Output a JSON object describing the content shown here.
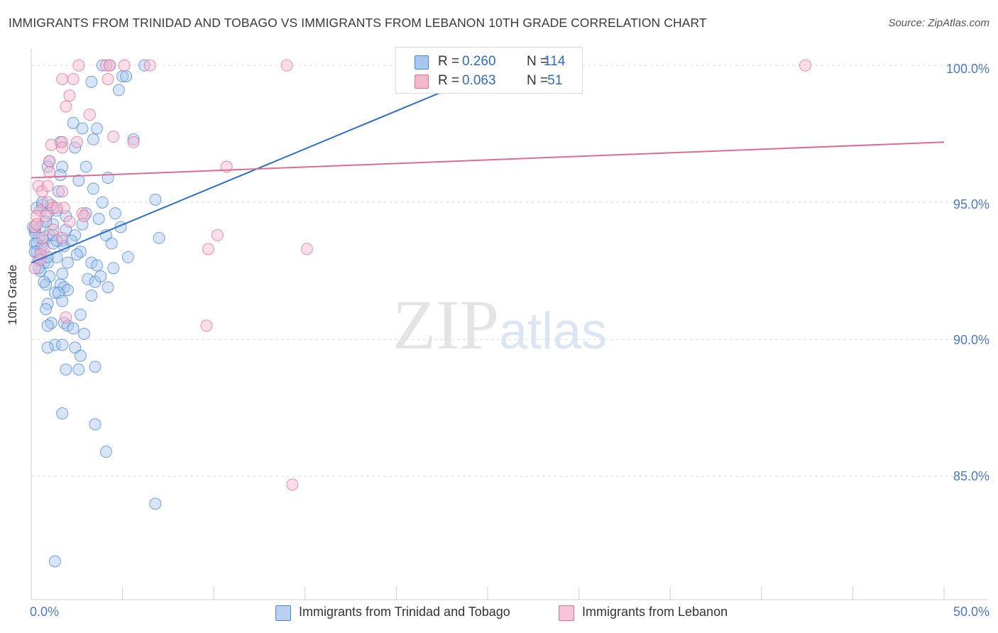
{
  "chart_data": {
    "type": "scatter",
    "title": "IMMIGRANTS FROM TRINIDAD AND TOBAGO VS IMMIGRANTS FROM LEBANON 10TH GRADE CORRELATION CHART",
    "source": "Source: ZipAtlas.com",
    "xlabel": "",
    "ylabel": "10th Grade",
    "xlim": [
      0,
      50
    ],
    "ylim": [
      80.5,
      100.6
    ],
    "x_tick_labels": [
      "0.0%",
      "50.0%"
    ],
    "y_tick_labels": [
      "100.0%",
      "95.0%",
      "90.0%",
      "85.0%"
    ],
    "y_tick_values": [
      100,
      95,
      90,
      85
    ],
    "watermark": {
      "zip": "ZIP",
      "atlas": "atlas"
    },
    "legend_stats": [
      {
        "r_label": "R =",
        "r": "0.260",
        "n_label": "N =",
        "n": "114"
      },
      {
        "r_label": "R =",
        "r": "0.063",
        "n_label": "N =",
        "n": " 51"
      }
    ],
    "series": [
      {
        "name": "Immigrants from Trinidad and Tobago",
        "color": "#4a86d8",
        "fill": "#a9c6ef",
        "trend": {
          "x0": 0,
          "y0": 92.8,
          "x1": 26,
          "y1": 100.0
        },
        "points": [
          [
            3.9,
            100
          ],
          [
            4.3,
            100
          ],
          [
            6.2,
            100
          ],
          [
            5.0,
            99.6
          ],
          [
            5.2,
            99.6
          ],
          [
            3.3,
            99.4
          ],
          [
            4.8,
            99.1
          ],
          [
            2.3,
            97.9
          ],
          [
            2.8,
            97.7
          ],
          [
            3.6,
            97.7
          ],
          [
            1.6,
            97.2
          ],
          [
            3.4,
            97.3
          ],
          [
            2.4,
            97.0
          ],
          [
            5.6,
            97.3
          ],
          [
            1.0,
            96.5
          ],
          [
            1.7,
            96.3
          ],
          [
            0.9,
            96.3
          ],
          [
            1.6,
            96.0
          ],
          [
            3.0,
            96.3
          ],
          [
            2.6,
            95.8
          ],
          [
            4.2,
            95.9
          ],
          [
            3.4,
            95.5
          ],
          [
            1.5,
            95.4
          ],
          [
            3.9,
            95.0
          ],
          [
            6.8,
            95.1
          ],
          [
            0.6,
            94.9
          ],
          [
            0.3,
            94.8
          ],
          [
            1.4,
            94.7
          ],
          [
            0.9,
            94.6
          ],
          [
            1.9,
            94.5
          ],
          [
            4.6,
            94.6
          ],
          [
            3.7,
            94.4
          ],
          [
            0.2,
            94.0
          ],
          [
            0.5,
            94.1
          ],
          [
            1.2,
            94.2
          ],
          [
            2.8,
            94.2
          ],
          [
            1.9,
            94.0
          ],
          [
            0.4,
            93.7
          ],
          [
            1.0,
            93.8
          ],
          [
            1.7,
            93.6
          ],
          [
            2.4,
            93.8
          ],
          [
            4.1,
            93.8
          ],
          [
            0.2,
            93.5
          ],
          [
            0.7,
            93.6
          ],
          [
            1.2,
            93.5
          ],
          [
            1.8,
            93.4
          ],
          [
            4.4,
            93.5
          ],
          [
            7.0,
            93.7
          ],
          [
            0.3,
            93.2
          ],
          [
            0.5,
            93.3
          ],
          [
            2.7,
            93.2
          ],
          [
            0.4,
            92.9
          ],
          [
            0.7,
            92.8
          ],
          [
            3.3,
            92.8
          ],
          [
            3.6,
            92.7
          ],
          [
            4.5,
            92.6
          ],
          [
            0.5,
            92.5
          ],
          [
            1.7,
            92.4
          ],
          [
            1.0,
            92.3
          ],
          [
            3.1,
            92.2
          ],
          [
            0.8,
            92.0
          ],
          [
            1.6,
            92.0
          ],
          [
            1.8,
            91.9
          ],
          [
            3.5,
            92.1
          ],
          [
            2.0,
            91.8
          ],
          [
            4.2,
            91.9
          ],
          [
            1.3,
            91.7
          ],
          [
            1.5,
            91.7
          ],
          [
            3.3,
            91.6
          ],
          [
            1.7,
            91.4
          ],
          [
            0.9,
            91.3
          ],
          [
            0.8,
            91.1
          ],
          [
            2.7,
            90.9
          ],
          [
            1.1,
            90.6
          ],
          [
            1.8,
            90.6
          ],
          [
            2.0,
            90.5
          ],
          [
            0.9,
            90.5
          ],
          [
            2.3,
            90.4
          ],
          [
            2.9,
            90.2
          ],
          [
            1.3,
            89.8
          ],
          [
            1.7,
            89.8
          ],
          [
            0.9,
            89.7
          ],
          [
            2.4,
            89.7
          ],
          [
            2.7,
            89.4
          ],
          [
            3.5,
            89.0
          ],
          [
            1.9,
            88.9
          ],
          [
            2.6,
            88.9
          ],
          [
            1.7,
            87.3
          ],
          [
            3.5,
            86.9
          ],
          [
            4.1,
            85.9
          ],
          [
            6.8,
            84.0
          ],
          [
            1.3,
            81.9
          ],
          [
            0.2,
            93.9
          ],
          [
            0.6,
            93.4
          ],
          [
            1.1,
            94.9
          ],
          [
            0.9,
            92.8
          ],
          [
            1.4,
            93.0
          ],
          [
            2.2,
            93.6
          ],
          [
            3.0,
            94.6
          ],
          [
            0.4,
            92.6
          ],
          [
            0.1,
            94.1
          ],
          [
            0.3,
            93.5
          ],
          [
            0.8,
            94.3
          ],
          [
            1.2,
            93.8
          ],
          [
            2.5,
            93.1
          ],
          [
            4.9,
            94.1
          ],
          [
            0.6,
            95.0
          ],
          [
            0.2,
            93.2
          ],
          [
            1.4,
            93.6
          ],
          [
            0.7,
            92.1
          ],
          [
            2.0,
            92.8
          ],
          [
            3.8,
            92.3
          ],
          [
            5.3,
            93.0
          ],
          [
            0.9,
            93.0
          ]
        ]
      },
      {
        "name": "Immigrants from Lebanon",
        "color": "#e36b94",
        "fill": "#f4b8cb",
        "trend": {
          "x0": 0,
          "y0": 95.9,
          "x1": 50,
          "y1": 97.2
        },
        "points": [
          [
            2.6,
            100
          ],
          [
            4.1,
            100
          ],
          [
            4.3,
            100
          ],
          [
            5.1,
            100
          ],
          [
            6.5,
            100
          ],
          [
            14.0,
            100
          ],
          [
            42.4,
            100
          ],
          [
            1.7,
            99.5
          ],
          [
            2.3,
            99.5
          ],
          [
            4.2,
            99.5
          ],
          [
            2.1,
            98.9
          ],
          [
            1.9,
            98.5
          ],
          [
            3.2,
            98.2
          ],
          [
            4.5,
            97.4
          ],
          [
            1.7,
            97.2
          ],
          [
            1.1,
            97.1
          ],
          [
            2.5,
            97.2
          ],
          [
            5.6,
            97.2
          ],
          [
            1.7,
            97.0
          ],
          [
            1.0,
            96.5
          ],
          [
            10.7,
            96.3
          ],
          [
            1.0,
            96.1
          ],
          [
            0.4,
            95.6
          ],
          [
            1.7,
            95.4
          ],
          [
            0.6,
            95.4
          ],
          [
            0.9,
            95.0
          ],
          [
            1.2,
            94.8
          ],
          [
            1.8,
            94.8
          ],
          [
            0.5,
            94.7
          ],
          [
            2.8,
            94.6
          ],
          [
            0.3,
            94.5
          ],
          [
            0.8,
            94.5
          ],
          [
            2.9,
            94.5
          ],
          [
            0.2,
            94.1
          ],
          [
            1.2,
            94.0
          ],
          [
            1.7,
            93.7
          ],
          [
            10.2,
            93.8
          ],
          [
            9.7,
            93.3
          ],
          [
            15.1,
            93.3
          ],
          [
            0.5,
            92.9
          ],
          [
            0.2,
            92.6
          ],
          [
            1.9,
            90.8
          ],
          [
            9.6,
            90.5
          ],
          [
            14.3,
            84.7
          ],
          [
            0.7,
            93.3
          ],
          [
            0.3,
            94.2
          ],
          [
            0.5,
            93.1
          ],
          [
            1.4,
            94.8
          ],
          [
            0.9,
            95.6
          ],
          [
            2.1,
            94.3
          ],
          [
            0.6,
            93.7
          ]
        ]
      }
    ]
  },
  "bottom_legend": [
    "Immigrants from Trinidad and Tobago",
    "Immigrants from Lebanon"
  ]
}
